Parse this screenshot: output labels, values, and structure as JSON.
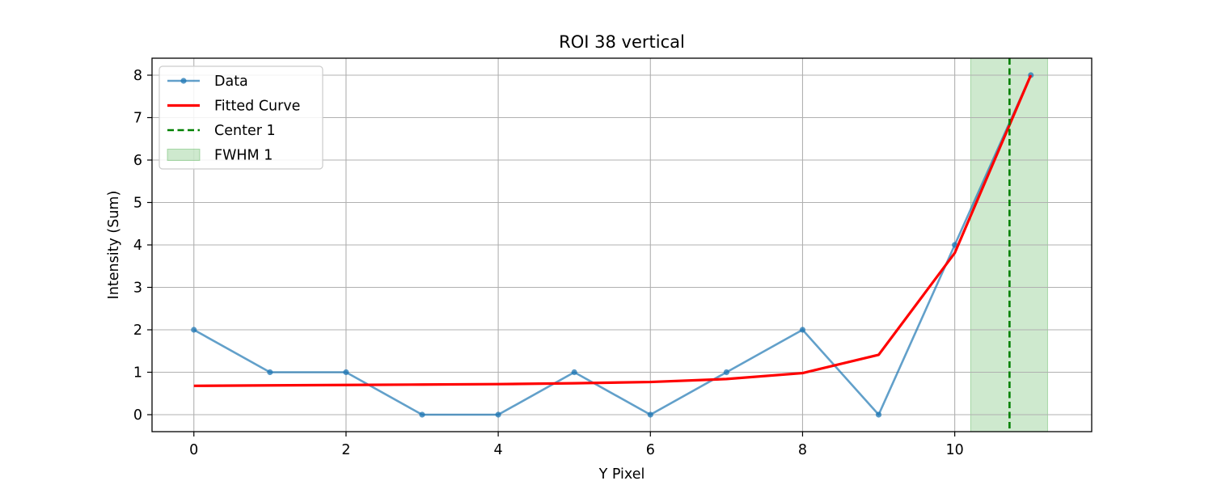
{
  "chart_data": {
    "type": "line",
    "title": "ROI 38 vertical",
    "xlabel": "Y Pixel",
    "ylabel": "Intensity (Sum)",
    "xlim": [
      -0.55,
      11.8
    ],
    "ylim": [
      -0.4,
      8.4
    ],
    "xticks": [
      0,
      2,
      4,
      6,
      8,
      10
    ],
    "yticks": [
      0,
      1,
      2,
      3,
      4,
      5,
      6,
      7,
      8
    ],
    "grid": true,
    "legend_position": "upper-left",
    "series": [
      {
        "name": "Data",
        "style": "line-with-markers",
        "color": "#1f77b4",
        "x": [
          0,
          1,
          2,
          3,
          4,
          5,
          6,
          7,
          8,
          9,
          10,
          11
        ],
        "y": [
          2,
          1,
          1,
          0,
          0,
          1,
          0,
          1,
          2,
          0,
          4,
          8
        ]
      },
      {
        "name": "Fitted Curve",
        "style": "line",
        "color": "#ff0000",
        "x": [
          0,
          1,
          2,
          3,
          4,
          5,
          6,
          7,
          8,
          9,
          10,
          11
        ],
        "y": [
          0.68,
          0.69,
          0.7,
          0.71,
          0.72,
          0.74,
          0.77,
          0.84,
          0.98,
          1.41,
          3.81,
          8.0
        ]
      }
    ],
    "annotations": [
      {
        "name": "Center 1",
        "type": "vline",
        "x": 10.72,
        "color": "#008000",
        "style": "dashed"
      },
      {
        "name": "FWHM 1",
        "type": "vspan",
        "x0": 10.21,
        "x1": 11.22,
        "color": "#2ca02c",
        "alpha": 0.23
      }
    ]
  }
}
